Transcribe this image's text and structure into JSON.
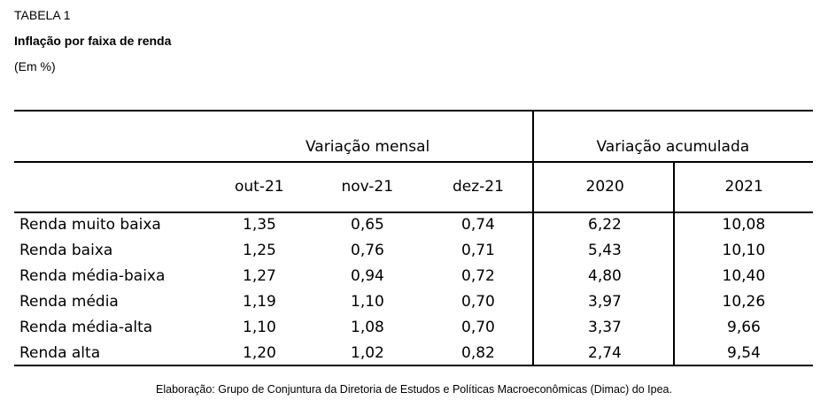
{
  "header": {
    "label": "TABELA 1",
    "title": "Inflação por faixa de renda",
    "unit": "(Em %)"
  },
  "table": {
    "groups": [
      "Variação mensal",
      "Variação acumulada"
    ],
    "columns": [
      "out-21",
      "nov-21",
      "dez-21",
      "2020",
      "2021"
    ],
    "rows": [
      [
        "Renda muito baixa",
        "1,35",
        "0,65",
        "0,74",
        "6,22",
        "10,08"
      ],
      [
        "Renda baixa",
        "1,25",
        "0,76",
        "0,71",
        "5,43",
        "10,10"
      ],
      [
        "Renda média-baixa",
        "1,27",
        "0,94",
        "0,72",
        "4,80",
        "10,40"
      ],
      [
        "Renda média",
        "1,19",
        "1,10",
        "0,70",
        "3,97",
        "10,26"
      ],
      [
        "Renda média-alta",
        "1,10",
        "1,08",
        "0,70",
        "3,37",
        "9,66"
      ],
      [
        "Renda alta",
        "1,20",
        "1,02",
        "0,82",
        "2,74",
        "9,54"
      ]
    ]
  },
  "footer": "Elaboração: Grupo de Conjuntura da Diretoria de Estudos e Políticas Macroeconômicas (Dimac) do Ipea."
}
